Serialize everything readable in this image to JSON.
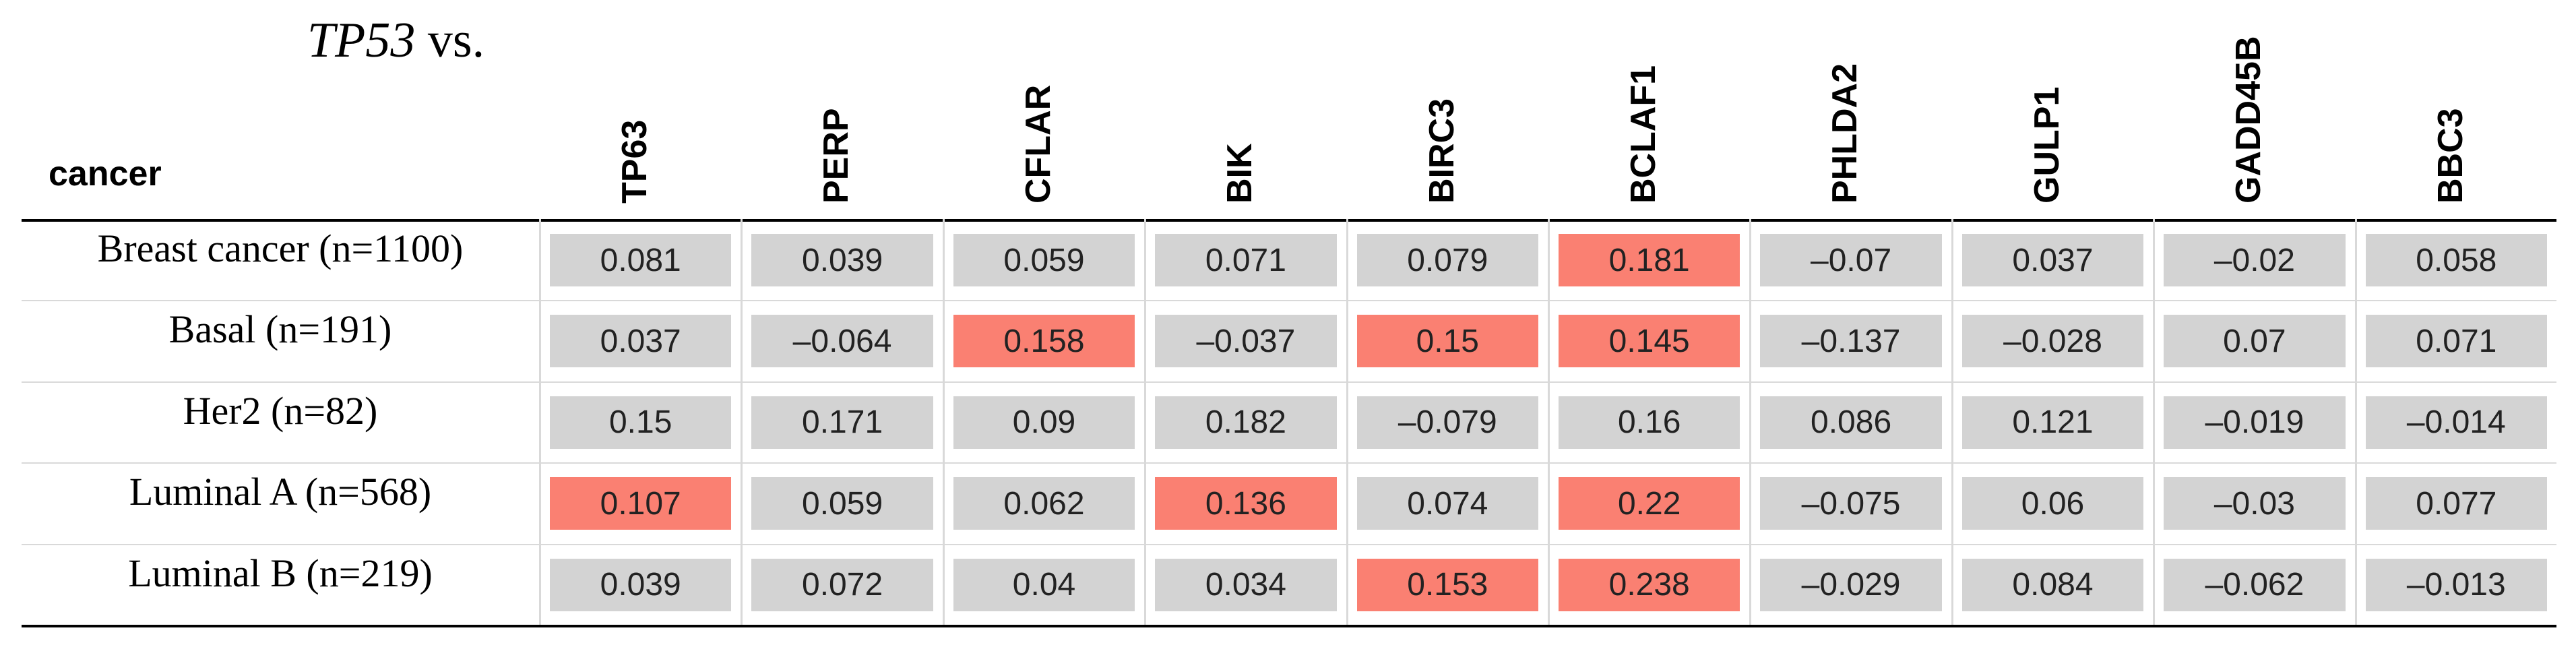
{
  "title": {
    "gene": "TP53",
    "suffix": "vs."
  },
  "table": {
    "corner": "cancer",
    "columns": [
      "TP63",
      "PERP",
      "CFLAR",
      "BIK",
      "BIRC3",
      "BCLAF1",
      "PHLDA2",
      "GULP1",
      "GADD45B",
      "BBC3"
    ],
    "rows": [
      {
        "label": "Breast cancer (n=1100)",
        "cells": [
          {
            "text": "0.081",
            "color": "#d3d3d3"
          },
          {
            "text": "0.039",
            "color": "#d3d3d3"
          },
          {
            "text": "0.059",
            "color": "#d3d3d3"
          },
          {
            "text": "0.071",
            "color": "#d3d3d3"
          },
          {
            "text": "0.079",
            "color": "#d3d3d3"
          },
          {
            "text": "0.181",
            "color": "#fa8072"
          },
          {
            "text": "–0.07",
            "color": "#d3d3d3"
          },
          {
            "text": "0.037",
            "color": "#d3d3d3"
          },
          {
            "text": "–0.02",
            "color": "#d3d3d3"
          },
          {
            "text": "0.058",
            "color": "#d3d3d3"
          }
        ]
      },
      {
        "label": "Basal (n=191)",
        "cells": [
          {
            "text": "0.037",
            "color": "#d3d3d3"
          },
          {
            "text": "–0.064",
            "color": "#d3d3d3"
          },
          {
            "text": "0.158",
            "color": "#fa8072"
          },
          {
            "text": "–0.037",
            "color": "#d3d3d3"
          },
          {
            "text": "0.15",
            "color": "#fa8072"
          },
          {
            "text": "0.145",
            "color": "#fa8072"
          },
          {
            "text": "–0.137",
            "color": "#d3d3d3"
          },
          {
            "text": "–0.028",
            "color": "#d3d3d3"
          },
          {
            "text": "0.07",
            "color": "#d3d3d3"
          },
          {
            "text": "0.071",
            "color": "#d3d3d3"
          }
        ]
      },
      {
        "label": "Her2 (n=82)",
        "cells": [
          {
            "text": "0.15",
            "color": "#d3d3d3"
          },
          {
            "text": "0.171",
            "color": "#d3d3d3"
          },
          {
            "text": "0.09",
            "color": "#d3d3d3"
          },
          {
            "text": "0.182",
            "color": "#d3d3d3"
          },
          {
            "text": "–0.079",
            "color": "#d3d3d3"
          },
          {
            "text": "0.16",
            "color": "#d3d3d3"
          },
          {
            "text": "0.086",
            "color": "#d3d3d3"
          },
          {
            "text": "0.121",
            "color": "#d3d3d3"
          },
          {
            "text": "–0.019",
            "color": "#d3d3d3"
          },
          {
            "text": "–0.014",
            "color": "#d3d3d3"
          }
        ]
      },
      {
        "label": "Luminal A (n=568)",
        "cells": [
          {
            "text": "0.107",
            "color": "#fa8072"
          },
          {
            "text": "0.059",
            "color": "#d3d3d3"
          },
          {
            "text": "0.062",
            "color": "#d3d3d3"
          },
          {
            "text": "0.136",
            "color": "#fa8072"
          },
          {
            "text": "0.074",
            "color": "#d3d3d3"
          },
          {
            "text": "0.22",
            "color": "#fa8072"
          },
          {
            "text": "–0.075",
            "color": "#d3d3d3"
          },
          {
            "text": "0.06",
            "color": "#d3d3d3"
          },
          {
            "text": "–0.03",
            "color": "#d3d3d3"
          },
          {
            "text": "0.077",
            "color": "#d3d3d3"
          }
        ]
      },
      {
        "label": "Luminal B (n=219)",
        "cells": [
          {
            "text": "0.039",
            "color": "#d3d3d3"
          },
          {
            "text": "0.072",
            "color": "#d3d3d3"
          },
          {
            "text": "0.04",
            "color": "#d3d3d3"
          },
          {
            "text": "0.034",
            "color": "#d3d3d3"
          },
          {
            "text": "0.153",
            "color": "#fa8072"
          },
          {
            "text": "0.238",
            "color": "#fa8072"
          },
          {
            "text": "–0.029",
            "color": "#d3d3d3"
          },
          {
            "text": "0.084",
            "color": "#d3d3d3"
          },
          {
            "text": "–0.062",
            "color": "#d3d3d3"
          },
          {
            "text": "–0.013",
            "color": "#d3d3d3"
          }
        ]
      }
    ]
  }
}
